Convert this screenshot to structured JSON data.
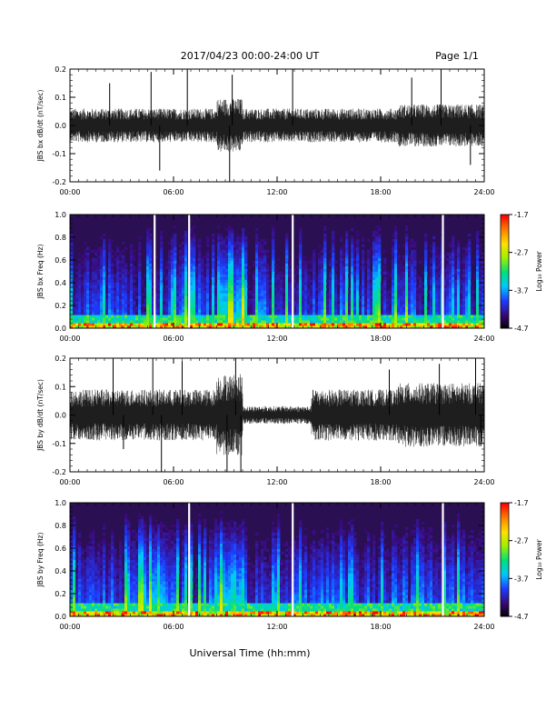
{
  "header": {
    "date_range": "2017/04/23  00:00-24:00 UT",
    "page": "Page 1/1"
  },
  "xlabel": "Universal Time (hh:mm)",
  "colors": {
    "trace": "#000000",
    "spectrogram_background": "#2a0f52",
    "colorbar_stops": [
      "#000000",
      "#3a0a78",
      "#1e3cff",
      "#00c8ff",
      "#00e07a",
      "#9cf000",
      "#ffe000",
      "#ff8000",
      "#ff0000"
    ]
  },
  "chart_data": [
    {
      "type": "line",
      "ylabel": "JBS bx dB/dt (nT/sec)",
      "ylim": [
        -0.2,
        0.2
      ],
      "yticks": [
        "0.2",
        "0.1",
        "0.0",
        "-0.1",
        "-0.2"
      ],
      "xticks": [
        "00:00",
        "06:00",
        "12:00",
        "18:00",
        "24:00"
      ],
      "xlim_hours": [
        0,
        24
      ],
      "noise_amplitude": 0.04,
      "spikes": [
        {
          "t": 2.3,
          "v": 0.15
        },
        {
          "t": 4.7,
          "v": 0.19
        },
        {
          "t": 5.2,
          "v": -0.16
        },
        {
          "t": 6.8,
          "v": 0.2
        },
        {
          "t": 9.25,
          "v": -0.2
        },
        {
          "t": 9.4,
          "v": 0.18
        },
        {
          "t": 12.9,
          "v": 0.2
        },
        {
          "t": 19.8,
          "v": 0.17
        },
        {
          "t": 21.5,
          "v": 0.2
        },
        {
          "t": 23.2,
          "v": -0.14
        }
      ]
    },
    {
      "type": "heatmap",
      "ylabel": "JBS bx Freq (Hz)",
      "ylim": [
        0,
        1
      ],
      "yticks": [
        "1.0",
        "0.8",
        "0.6",
        "0.4",
        "0.2",
        "0.0"
      ],
      "xticks": [
        "00:00",
        "06:00",
        "12:00",
        "18:00",
        "24:00"
      ],
      "colorbar": {
        "label": "Log₁₀ Power",
        "min": -4.7,
        "max": -1.7,
        "ticks": [
          "-1.7",
          "-2.7",
          "-3.7",
          "-4.7"
        ]
      },
      "gaps_hours": [
        4.9,
        6.9,
        12.9,
        21.6
      ]
    },
    {
      "type": "line",
      "ylabel": "JBS by dB/dt (nT/sec)",
      "ylim": [
        -0.2,
        0.2
      ],
      "yticks": [
        "0.2",
        "0.1",
        "0.0",
        "-0.1",
        "-0.2"
      ],
      "xticks": [
        "00:00",
        "06:00",
        "12:00",
        "18:00",
        "24:00"
      ],
      "xlim_hours": [
        0,
        24
      ],
      "noise_amplitude": 0.06,
      "spikes": [
        {
          "t": 2.5,
          "v": 0.2
        },
        {
          "t": 3.1,
          "v": -0.12
        },
        {
          "t": 4.8,
          "v": 0.2
        },
        {
          "t": 5.3,
          "v": -0.2
        },
        {
          "t": 6.5,
          "v": 0.19
        },
        {
          "t": 9.1,
          "v": -0.2
        },
        {
          "t": 9.6,
          "v": 0.2
        },
        {
          "t": 9.9,
          "v": -0.2
        },
        {
          "t": 18.5,
          "v": 0.16
        },
        {
          "t": 21.4,
          "v": 0.18
        },
        {
          "t": 23.5,
          "v": 0.2
        },
        {
          "t": 23.8,
          "v": -0.11
        }
      ]
    },
    {
      "type": "heatmap",
      "ylabel": "JBS by Freq (Hz)",
      "ylim": [
        0,
        1
      ],
      "yticks": [
        "1.0",
        "0.8",
        "0.6",
        "0.4",
        "0.2",
        "0.0"
      ],
      "xticks": [
        "00:00",
        "06:00",
        "12:00",
        "18:00",
        "24:00"
      ],
      "colorbar": {
        "label": "Log₁₀ Power",
        "min": -4.7,
        "max": -1.7,
        "ticks": [
          "-1.7",
          "-2.7",
          "-3.7",
          "-4.7"
        ]
      },
      "gaps_hours": [
        6.9,
        12.9,
        21.6
      ]
    }
  ]
}
